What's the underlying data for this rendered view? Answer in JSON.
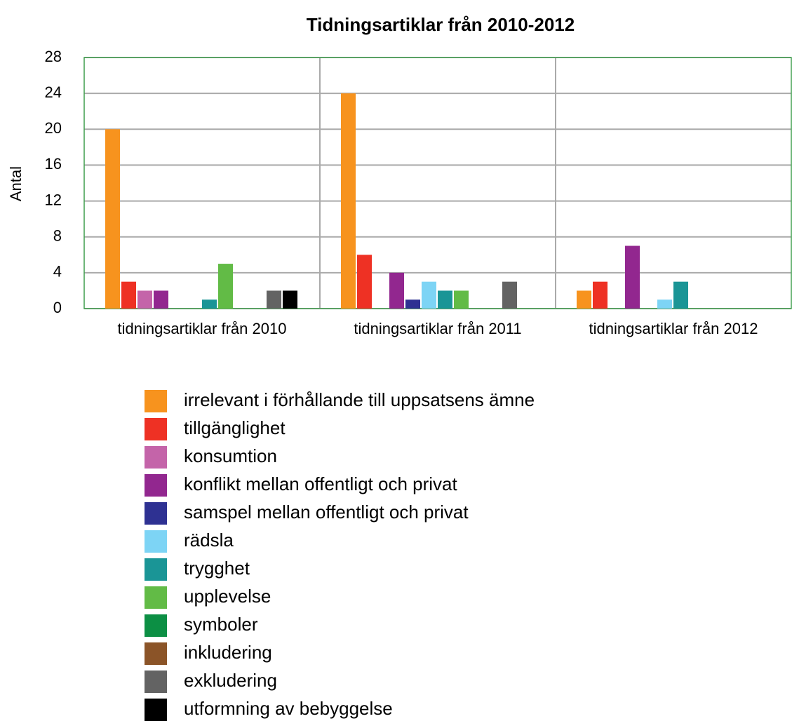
{
  "chart_data": {
    "type": "bar",
    "title": "Tidningsartiklar från 2010-2012",
    "y_label": "Antal",
    "categories": [
      "tidningsartiklar från 2010",
      "tidningsartiklar från 2011",
      "tidningsartiklar från 2012"
    ],
    "series": [
      {
        "name": "irrelevant i förhållande till uppsatsens ämne",
        "color": "#f7931e",
        "values": [
          20,
          24,
          2
        ]
      },
      {
        "name": "tillgänglighet",
        "color": "#ee3124",
        "values": [
          3,
          6,
          3
        ]
      },
      {
        "name": "konsumtion",
        "color": "#c464a9",
        "values": [
          2,
          0,
          0
        ]
      },
      {
        "name": "konflikt mellan offentligt och privat",
        "color": "#92278f",
        "values": [
          2,
          4,
          7
        ]
      },
      {
        "name": "samspel mellan offentligt och privat",
        "color": "#2e3192",
        "values": [
          0,
          1,
          0
        ]
      },
      {
        "name": "rädsla",
        "color": "#7dd4f5",
        "values": [
          0,
          3,
          1
        ]
      },
      {
        "name": "trygghet",
        "color": "#1a9596",
        "values": [
          1,
          2,
          3
        ]
      },
      {
        "name": "upplevelse",
        "color": "#62bb46",
        "values": [
          5,
          2,
          0
        ]
      },
      {
        "name": "symboler",
        "color": "#0c8f44",
        "values": [
          0,
          0,
          0
        ]
      },
      {
        "name": "inkludering",
        "color": "#8b5428",
        "values": [
          0,
          0,
          0
        ]
      },
      {
        "name": "exkludering",
        "color": "#636363",
        "values": [
          2,
          3,
          0
        ]
      },
      {
        "name": "utformning av bebyggelse",
        "color": "#000000",
        "values": [
          2,
          0,
          0
        ]
      }
    ],
    "ylim": [
      0,
      28
    ],
    "yticks": [
      0,
      4,
      8,
      12,
      16,
      20,
      24,
      28
    ],
    "grid": true,
    "legend": "bottom"
  }
}
